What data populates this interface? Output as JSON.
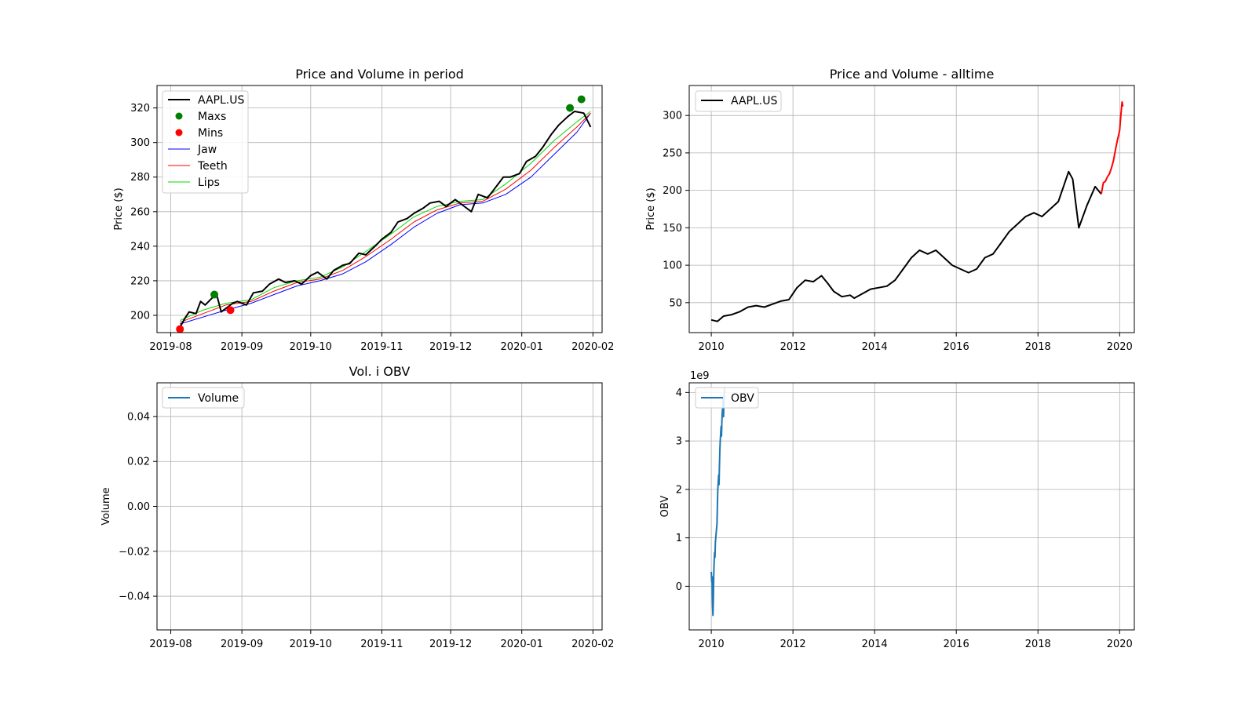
{
  "chart_data": [
    {
      "type": "line",
      "title": "Price and Volume in period",
      "xlabel": "",
      "ylabel": "Price ($)",
      "x_ticks": [
        "2019-08",
        "2019-09",
        "2019-10",
        "2019-11",
        "2019-12",
        "2020-01",
        "2020-02"
      ],
      "y_ticks": [
        "200",
        "220",
        "240",
        "260",
        "280",
        "300",
        "320"
      ],
      "xlim": [
        "2019-07-26",
        "2020-02-05"
      ],
      "ylim": [
        190,
        333
      ],
      "grid": true,
      "legend_position": "top-left",
      "colors": {
        "price": "#000000",
        "maxs": "#008000",
        "mins": "#ff0000",
        "jaw": "#0000ff",
        "teeth": "#ff0000",
        "lips": "#00dd00"
      },
      "price": {
        "name": "AAPL.US",
        "x": [
          "2019-08-05",
          "2019-08-07",
          "2019-08-09",
          "2019-08-12",
          "2019-08-14",
          "2019-08-16",
          "2019-08-19",
          "2019-08-21",
          "2019-08-23",
          "2019-08-26",
          "2019-08-28",
          "2019-08-30",
          "2019-09-03",
          "2019-09-06",
          "2019-09-10",
          "2019-09-13",
          "2019-09-17",
          "2019-09-20",
          "2019-09-24",
          "2019-09-27",
          "2019-10-01",
          "2019-10-04",
          "2019-10-08",
          "2019-10-11",
          "2019-10-15",
          "2019-10-18",
          "2019-10-22",
          "2019-10-25",
          "2019-10-29",
          "2019-11-01",
          "2019-11-05",
          "2019-11-08",
          "2019-11-12",
          "2019-11-15",
          "2019-11-19",
          "2019-11-22",
          "2019-11-26",
          "2019-11-29",
          "2019-12-03",
          "2019-12-06",
          "2019-12-10",
          "2019-12-13",
          "2019-12-17",
          "2019-12-20",
          "2019-12-24",
          "2019-12-27",
          "2019-12-31",
          "2020-01-03",
          "2020-01-07",
          "2020-01-10",
          "2020-01-14",
          "2020-01-17",
          "2020-01-21",
          "2020-01-24",
          "2020-01-28",
          "2020-01-31"
        ],
        "values": [
          193,
          198,
          202,
          201,
          208,
          206,
          210,
          212,
          202,
          205,
          207,
          208,
          206,
          213,
          214,
          218,
          221,
          219,
          220,
          218,
          223,
          225,
          221,
          226,
          229,
          230,
          236,
          235,
          240,
          244,
          248,
          254,
          256,
          259,
          262,
          265,
          266,
          263,
          267,
          264,
          260,
          270,
          268,
          273,
          280,
          280,
          282,
          289,
          292,
          297,
          305,
          310,
          315,
          318,
          317,
          309
        ]
      },
      "maxs": {
        "name": "Maxs",
        "x": [
          "2019-08-20",
          "2020-01-22",
          "2020-01-27"
        ],
        "values": [
          212,
          320,
          325
        ]
      },
      "mins": {
        "name": "Mins",
        "x": [
          "2019-08-05",
          "2019-08-27"
        ],
        "values": [
          192,
          203
        ]
      },
      "jaw": {
        "name": "Jaw",
        "x": [
          "2019-08-05",
          "2019-08-15",
          "2019-08-25",
          "2019-09-05",
          "2019-09-15",
          "2019-09-25",
          "2019-10-05",
          "2019-10-15",
          "2019-10-25",
          "2019-11-05",
          "2019-11-15",
          "2019-11-25",
          "2019-12-05",
          "2019-12-15",
          "2019-12-25",
          "2020-01-05",
          "2020-01-15",
          "2020-01-25",
          "2020-01-31"
        ],
        "values": [
          195,
          199,
          203,
          207,
          212,
          217,
          220,
          224,
          231,
          241,
          251,
          259,
          264,
          265,
          270,
          280,
          293,
          306,
          317
        ]
      },
      "teeth": {
        "name": "Teeth",
        "x": [
          "2019-08-05",
          "2019-08-15",
          "2019-08-25",
          "2019-09-05",
          "2019-09-15",
          "2019-09-25",
          "2019-10-05",
          "2019-10-15",
          "2019-10-25",
          "2019-11-05",
          "2019-11-15",
          "2019-11-25",
          "2019-12-05",
          "2019-12-15",
          "2019-12-25",
          "2020-01-05",
          "2020-01-15",
          "2020-01-25",
          "2020-01-31"
        ],
        "values": [
          196,
          201,
          206,
          208,
          214,
          219,
          221,
          226,
          234,
          244,
          254,
          261,
          265,
          266,
          273,
          284,
          297,
          309,
          317
        ]
      },
      "lips": {
        "name": "Lips",
        "x": [
          "2019-08-05",
          "2019-08-15",
          "2019-08-25",
          "2019-09-05",
          "2019-09-15",
          "2019-09-25",
          "2019-10-05",
          "2019-10-15",
          "2019-10-25",
          "2019-11-05",
          "2019-11-15",
          "2019-11-25",
          "2019-12-05",
          "2019-12-15",
          "2019-12-25",
          "2020-01-05",
          "2020-01-15",
          "2020-01-25",
          "2020-01-31"
        ],
        "values": [
          197,
          203,
          207,
          209,
          216,
          220,
          222,
          228,
          237,
          247,
          257,
          263,
          266,
          267,
          276,
          288,
          301,
          312,
          318
        ]
      }
    },
    {
      "type": "line",
      "title": "Price and Volume - alltime",
      "xlabel": "",
      "ylabel": "Price ($)",
      "x_ticks": [
        "2010",
        "2012",
        "2014",
        "2016",
        "2018",
        "2020"
      ],
      "y_ticks": [
        "50",
        "100",
        "150",
        "200",
        "250",
        "300"
      ],
      "xlim": [
        2009.46,
        2020.36
      ],
      "ylim": [
        10,
        340
      ],
      "grid": true,
      "legend_position": "top-left",
      "colors": {
        "price": "#000000",
        "highlight": "#ff0000"
      },
      "series": [
        {
          "name": "AAPL.US",
          "x": [
            2010.0,
            2010.15,
            2010.3,
            2010.5,
            2010.7,
            2010.9,
            2011.1,
            2011.3,
            2011.5,
            2011.7,
            2011.9,
            2012.1,
            2012.3,
            2012.5,
            2012.7,
            2012.85,
            2013.0,
            2013.2,
            2013.4,
            2013.5,
            2013.7,
            2013.9,
            2014.1,
            2014.3,
            2014.5,
            2014.7,
            2014.9,
            2015.1,
            2015.3,
            2015.5,
            2015.7,
            2015.9,
            2016.1,
            2016.3,
            2016.5,
            2016.7,
            2016.9,
            2017.1,
            2017.3,
            2017.5,
            2017.7,
            2017.9,
            2018.1,
            2018.3,
            2018.5,
            2018.75,
            2018.85,
            2019.0,
            2019.2,
            2019.4,
            2019.55
          ],
          "values": [
            27,
            25,
            32,
            34,
            38,
            44,
            46,
            44,
            48,
            52,
            54,
            70,
            80,
            78,
            86,
            76,
            65,
            58,
            60,
            56,
            62,
            68,
            70,
            72,
            80,
            95,
            110,
            120,
            115,
            120,
            110,
            100,
            95,
            90,
            95,
            110,
            115,
            130,
            145,
            155,
            165,
            170,
            165,
            175,
            185,
            225,
            215,
            150,
            180,
            205,
            195
          ]
        }
      ],
      "highlight": {
        "x": [
          2019.55,
          2019.6,
          2019.65,
          2019.7,
          2019.75,
          2019.8,
          2019.85,
          2019.9,
          2019.95,
          2020.0,
          2020.03,
          2020.06,
          2020.08
        ],
        "values": [
          195,
          210,
          212,
          218,
          222,
          230,
          240,
          255,
          268,
          280,
          300,
          318,
          312
        ]
      }
    },
    {
      "type": "line",
      "title": "Vol. i OBV",
      "xlabel": "",
      "ylabel": "Volume",
      "x_ticks": [
        "2019-08",
        "2019-09",
        "2019-10",
        "2019-11",
        "2019-12",
        "2020-01",
        "2020-02"
      ],
      "y_ticks": [
        "−0.04",
        "−0.02",
        "0.00",
        "0.02",
        "0.04"
      ],
      "xlim": [
        "2019-07-26",
        "2020-02-05"
      ],
      "ylim": [
        -0.055,
        0.055
      ],
      "grid": true,
      "legend_position": "top-left",
      "colors": {
        "volume": "#1f77b4"
      },
      "series": [
        {
          "name": "Volume",
          "x": [],
          "values": []
        }
      ]
    },
    {
      "type": "line",
      "title": "",
      "xlabel": "",
      "ylabel": "OBV",
      "offset_label": "1e9",
      "x_ticks": [
        "2010",
        "2012",
        "2014",
        "2016",
        "2018",
        "2020"
      ],
      "y_ticks": [
        "0",
        "1",
        "2",
        "3",
        "4"
      ],
      "xlim": [
        2009.46,
        2020.36
      ],
      "ylim": [
        -0.9,
        4.2
      ],
      "grid": true,
      "legend_position": "top-left",
      "colors": {
        "obv": "#1f77b4"
      },
      "series": [
        {
          "name": "OBV",
          "x": [
            2010.0,
            2010.01,
            2010.02,
            2010.03,
            2010.04,
            2010.05,
            2010.06,
            2010.07,
            2010.08,
            2010.09,
            2010.1,
            2010.12,
            2010.14,
            2010.15,
            2010.16,
            2010.18,
            2010.19,
            2010.2,
            2010.21,
            2010.22,
            2010.24,
            2010.25,
            2010.26,
            2010.27,
            2010.28,
            2010.29,
            2010.3,
            2010.31,
            2010.32,
            2010.33
          ],
          "values": [
            0.3,
            0.1,
            0.2,
            -0.4,
            -0.6,
            -0.3,
            0.2,
            0.5,
            0.7,
            0.6,
            0.9,
            1.1,
            1.3,
            1.7,
            2.0,
            2.3,
            2.1,
            2.5,
            2.8,
            3.0,
            3.3,
            3.1,
            3.4,
            3.6,
            3.7,
            3.9,
            3.5,
            3.8,
            4.0,
            4.1
          ]
        }
      ]
    }
  ]
}
